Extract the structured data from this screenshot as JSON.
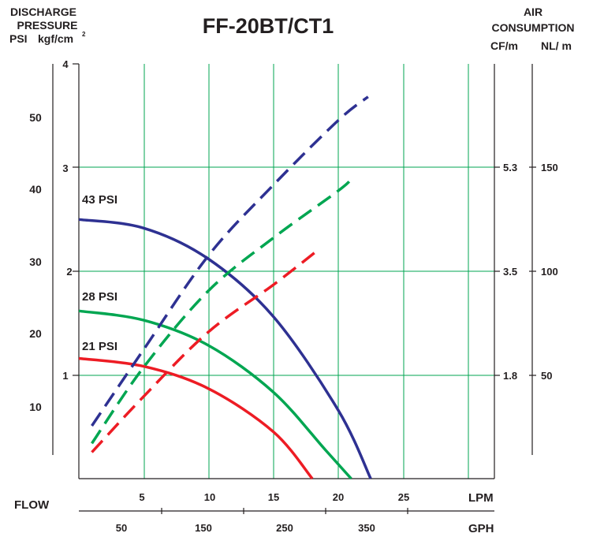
{
  "title": "FF-20BT/CT1",
  "left_axis": {
    "title_lines": [
      "DISCHARGE",
      "PRESSURE"
    ],
    "unit_psi": "PSI",
    "unit_kgf": "kgf/cm",
    "unit_kgf_sup": "2",
    "psi_ticks": [
      "50",
      "40",
      "30",
      "20",
      "10"
    ],
    "kgf_ticks": [
      "4",
      "3",
      "2",
      "1"
    ]
  },
  "right_axis": {
    "title_lines": [
      "AIR",
      "CONSUMPTION"
    ],
    "unit_cfm": "CF/m",
    "unit_nlm": "NL/ m",
    "cfm_ticks": [
      "5.3",
      "3.5",
      "1.8"
    ],
    "nlm_ticks": [
      "150",
      "100",
      "50"
    ]
  },
  "bottom_axis": {
    "flow_label": "FLOW",
    "lpm_unit": "LPM",
    "gph_unit": "GPH",
    "lpm_ticks": [
      "5",
      "10",
      "15",
      "20",
      "25"
    ],
    "gph_ticks": [
      "50",
      "150",
      "250",
      "350"
    ]
  },
  "curve_labels": [
    "43 PSI",
    "28 PSI",
    "21 PSI"
  ],
  "colors": {
    "blue": "#2e3192",
    "green": "#00a651",
    "red": "#ed1c24",
    "grid": "#00a651",
    "axis": "#231f20"
  },
  "chart_data": {
    "type": "line",
    "title": "FF-20BT/CT1",
    "xlabel": "FLOW",
    "x_unit": "LPM",
    "ylabel": "DISCHARGE PRESSURE",
    "y_unit": "PSI",
    "xlim": [
      0,
      32
    ],
    "ylim": [
      0,
      58
    ],
    "y2_unit": "CF/m",
    "y2lim": [
      0,
      6.7
    ],
    "grid": true,
    "series": [
      {
        "name": "43 PSI",
        "kind": "pressure",
        "color": "blue",
        "x": [
          0,
          5,
          10,
          15,
          20,
          22.5
        ],
        "y": [
          36,
          34.8,
          30.5,
          22.5,
          9.5,
          0
        ]
      },
      {
        "name": "28 PSI",
        "kind": "pressure",
        "color": "green",
        "x": [
          0,
          5,
          10,
          15,
          19,
          21
        ],
        "y": [
          23.3,
          22,
          18.5,
          12,
          4,
          0
        ]
      },
      {
        "name": "21 PSI",
        "kind": "pressure",
        "color": "red",
        "x": [
          0,
          5,
          10,
          15,
          18
        ],
        "y": [
          16.7,
          15.6,
          12.5,
          6.5,
          0
        ]
      },
      {
        "name": "43 PSI",
        "kind": "air",
        "color": "blue",
        "x": [
          1,
          5,
          10,
          15,
          20,
          22.3
        ],
        "y": [
          0.9,
          2.2,
          3.8,
          5.0,
          6.1,
          6.5
        ]
      },
      {
        "name": "28 PSI",
        "kind": "air",
        "color": "green",
        "x": [
          1,
          5,
          10,
          15,
          20,
          21
        ],
        "y": [
          0.6,
          1.9,
          3.2,
          4.1,
          4.9,
          5.1
        ]
      },
      {
        "name": "21 PSI",
        "kind": "air",
        "color": "red",
        "x": [
          1,
          5,
          10,
          15,
          18.2
        ],
        "y": [
          0.45,
          1.4,
          2.5,
          3.3,
          3.85
        ]
      }
    ]
  }
}
